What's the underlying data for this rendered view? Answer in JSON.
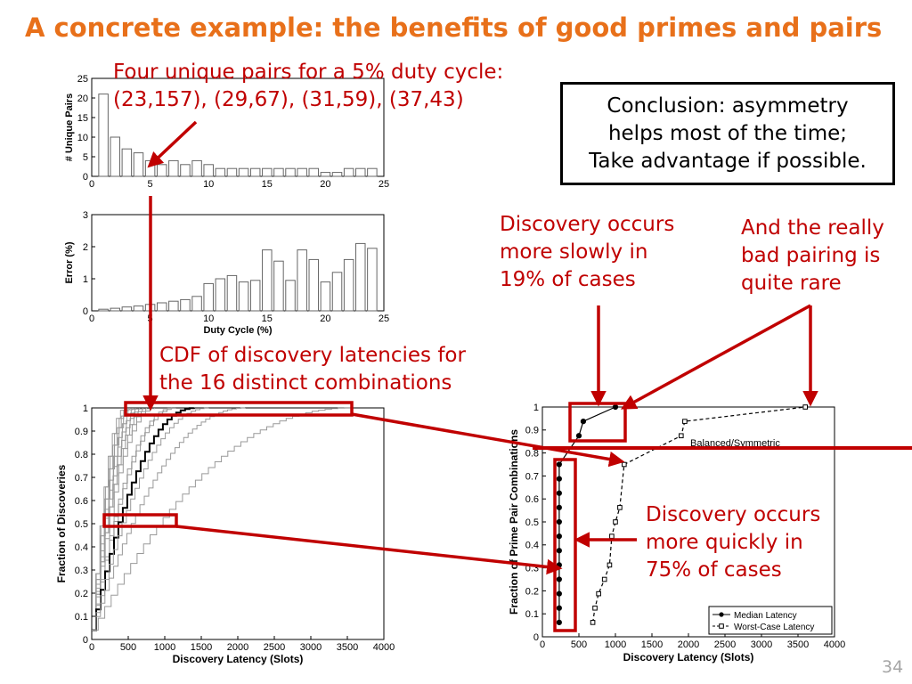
{
  "slide": {
    "title": "A concrete example: the benefits of good primes and pairs",
    "number": "34"
  },
  "annotations": {
    "pairs_line1": "Four unique pairs for a 5% duty cycle:",
    "pairs_line2": "(23,157), (29,67), (31,59), (37,43)",
    "conclusion_line1": "Conclusion: asymmetry",
    "conclusion_line2": "helps most of the time;",
    "conclusion_line3": "Take advantage if possible.",
    "cdf_line1": "CDF of discovery latencies for",
    "cdf_line2": "the 16 distinct combinations",
    "slow_line1": "Discovery occurs",
    "slow_line2": "more slowly in",
    "slow_line3": "19% of cases",
    "bad_line1": "And the really",
    "bad_line2": "bad pairing is",
    "bad_line3": "quite rare",
    "quick_line1": "Discovery occurs",
    "quick_line2": "more quickly in",
    "quick_line3": "75% of cases"
  },
  "colors": {
    "title": "#e8701a",
    "annotation": "#c00000",
    "slide_number": "#a6a6a6"
  },
  "chart_data": [
    {
      "type": "bar",
      "xlabel": "",
      "ylabel": "# Unique Pairs",
      "xlim": [
        0,
        25
      ],
      "ylim": [
        0,
        25
      ],
      "xticks": [
        "0",
        "5",
        "10",
        "15",
        "20",
        "25"
      ],
      "yticks": [
        "0",
        "5",
        "10",
        "15",
        "20",
        "25"
      ],
      "x": [
        1,
        2,
        3,
        4,
        5,
        6,
        7,
        8,
        9,
        10,
        11,
        12,
        13,
        14,
        15,
        16,
        17,
        18,
        19,
        20,
        21,
        22,
        23,
        24
      ],
      "values": [
        21,
        10,
        7,
        6,
        4,
        3,
        4,
        3,
        4,
        3,
        2,
        2,
        2,
        2,
        2,
        2,
        2,
        2,
        2,
        1,
        1,
        2,
        2,
        2
      ]
    },
    {
      "type": "bar",
      "xlabel": "Duty Cycle (%)",
      "ylabel": "Error (%)",
      "xlim": [
        0,
        25
      ],
      "ylim": [
        0,
        3
      ],
      "xticks": [
        "0",
        "5",
        "10",
        "15",
        "20",
        "25"
      ],
      "yticks": [
        "0",
        "1",
        "2",
        "3"
      ],
      "x": [
        1,
        2,
        3,
        4,
        5,
        6,
        7,
        8,
        9,
        10,
        11,
        12,
        13,
        14,
        15,
        16,
        17,
        18,
        19,
        20,
        21,
        22,
        23,
        24
      ],
      "values": [
        0.05,
        0.08,
        0.12,
        0.15,
        0.2,
        0.25,
        0.3,
        0.35,
        0.45,
        0.85,
        1.0,
        1.1,
        0.9,
        0.95,
        1.9,
        1.55,
        0.95,
        1.9,
        1.6,
        0.9,
        1.2,
        1.6,
        2.1,
        1.95
      ]
    },
    {
      "type": "line",
      "xlabel": "Discovery Latency (Slots)",
      "ylabel": "Fraction of Discoveries",
      "xlim": [
        0,
        4000
      ],
      "ylim": [
        0,
        1
      ],
      "xticks": [
        "0",
        "500",
        "1000",
        "1500",
        "2000",
        "2500",
        "3000",
        "3500",
        "4000"
      ],
      "yticks": [
        "0",
        "0.1",
        "0.2",
        "0.3",
        "0.4",
        "0.5",
        "0.6",
        "0.7",
        "0.8",
        "0.9",
        "1"
      ],
      "curve_completion_latency": [
        450,
        500,
        520,
        560,
        600,
        650,
        700,
        750,
        800,
        860,
        1100,
        1150,
        1400,
        1600,
        2100,
        3550
      ],
      "highlighted_curve_completion_latency": 1400
    },
    {
      "type": "line",
      "xlabel": "Discovery Latency (Slots)",
      "ylabel": "Fraction of Prime Pair Combinations",
      "xlim": [
        0,
        4000
      ],
      "ylim": [
        0,
        1
      ],
      "xticks": [
        "0",
        "500",
        "1000",
        "1500",
        "2000",
        "2500",
        "3000",
        "3500",
        "4000"
      ],
      "yticks": [
        "0",
        "0.1",
        "0.2",
        "0.3",
        "0.4",
        "0.5",
        "0.6",
        "0.7",
        "0.8",
        "0.9",
        "1"
      ],
      "annotation": "Balanced/Symmetric",
      "series": [
        {
          "name": "Median Latency",
          "x": [
            230,
            230,
            230,
            230,
            230,
            230,
            230,
            230,
            230,
            230,
            230,
            230,
            500,
            560,
            1000
          ],
          "y": [
            0.0625,
            0.125,
            0.1875,
            0.25,
            0.3125,
            0.375,
            0.4375,
            0.5,
            0.5625,
            0.625,
            0.6875,
            0.75,
            0.875,
            0.9375,
            1.0
          ]
        },
        {
          "name": "Worst-Case Latency",
          "x": [
            690,
            720,
            770,
            850,
            920,
            950,
            1000,
            1060,
            1120,
            1900,
            1950,
            3600
          ],
          "y": [
            0.0625,
            0.125,
            0.1875,
            0.25,
            0.3125,
            0.4375,
            0.5,
            0.5625,
            0.75,
            0.875,
            0.9375,
            1.0
          ]
        }
      ]
    }
  ]
}
